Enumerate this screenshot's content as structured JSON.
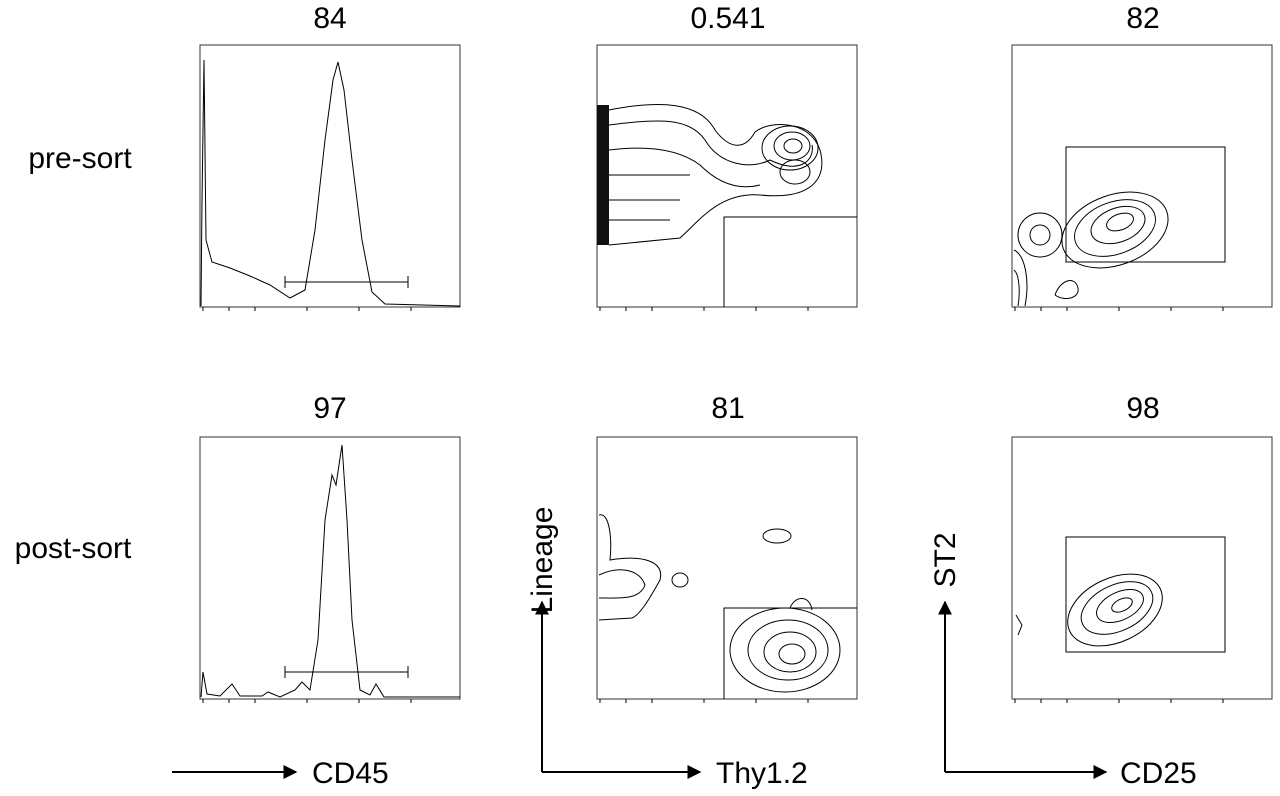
{
  "rows": [
    {
      "label": "pre-sort",
      "gates": [
        84,
        0.541,
        82
      ]
    },
    {
      "label": "post-sort",
      "gates": [
        97,
        81,
        98
      ]
    }
  ],
  "axes": [
    {
      "x": "CD45"
    },
    {
      "x": "Thy1.2",
      "y": "Lineage"
    },
    {
      "x": "CD25",
      "y": "ST2"
    }
  ]
}
